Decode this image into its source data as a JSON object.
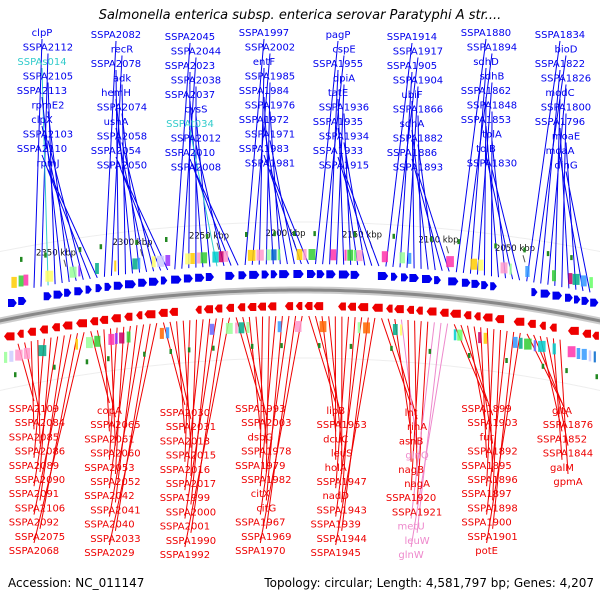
{
  "title": "Salmonella enterica subsp. enterica serovar Paratyphi A str....",
  "footer": {
    "accession": "Accession: NC_011147",
    "topology": "Topology: circular; Length: 4,581,797 bp; Genes: 4,207"
  },
  "colors": {
    "forward_gene": "#0000ee",
    "reverse_gene": "#ee0000",
    "rna_forward": "#33cccc",
    "rna_reverse": "#ee88cc",
    "backbone": "#888888",
    "ticks": "#228822"
  },
  "position_labels": [
    "2350 kbp",
    "2300 kbp",
    "2250 kbp",
    "2200 kbp",
    "2150 kbp",
    "2100 kbp",
    "2050 kbp"
  ],
  "top_labels": [
    {
      "text": "clpP",
      "type": "gene"
    },
    {
      "text": "SSPA2112",
      "type": "gene"
    },
    {
      "text": "SSPAs014",
      "type": "rna"
    },
    {
      "text": "SSPA2105",
      "type": "gene"
    },
    {
      "text": "SSPA2113",
      "type": "gene"
    },
    {
      "text": "rpmE2",
      "type": "gene"
    },
    {
      "text": "clpX",
      "type": "gene"
    },
    {
      "text": "SSPA2103",
      "type": "gene"
    },
    {
      "text": "SSPA2110",
      "type": "gene"
    },
    {
      "text": "rpmJ",
      "type": "gene"
    },
    {
      "text": "SSPA2082",
      "type": "gene"
    },
    {
      "text": "recR",
      "type": "gene"
    },
    {
      "text": "SSPA2078",
      "type": "gene"
    },
    {
      "text": "adk",
      "type": "gene"
    },
    {
      "text": "hemH",
      "type": "gene"
    },
    {
      "text": "SSPA2074",
      "type": "gene"
    },
    {
      "text": "ushA",
      "type": "gene"
    },
    {
      "text": "SSPA2058",
      "type": "gene"
    },
    {
      "text": "SSPA2054",
      "type": "gene"
    },
    {
      "text": "SSPA2050",
      "type": "gene"
    },
    {
      "text": "SSPA2045",
      "type": "gene"
    },
    {
      "text": "SSPA2044",
      "type": "gene"
    },
    {
      "text": "SSPA2023",
      "type": "gene"
    },
    {
      "text": "SSPA2038",
      "type": "gene"
    },
    {
      "text": "SSPA2037",
      "type": "gene"
    },
    {
      "text": "cysS",
      "type": "gene"
    },
    {
      "text": "SSPAt034",
      "type": "rna"
    },
    {
      "text": "SSPA2012",
      "type": "gene"
    },
    {
      "text": "SSPA2010",
      "type": "gene"
    },
    {
      "text": "SSPA2008",
      "type": "gene"
    },
    {
      "text": "SSPA1997",
      "type": "gene"
    },
    {
      "text": "SSPA2002",
      "type": "gene"
    },
    {
      "text": "entF",
      "type": "gene"
    },
    {
      "text": "SSPA1985",
      "type": "gene"
    },
    {
      "text": "SSPA1984",
      "type": "gene"
    },
    {
      "text": "SSPA1976",
      "type": "gene"
    },
    {
      "text": "SSPA1972",
      "type": "gene"
    },
    {
      "text": "SSPA1971",
      "type": "gene"
    },
    {
      "text": "SSPA1983",
      "type": "gene"
    },
    {
      "text": "SSPA1981",
      "type": "gene"
    },
    {
      "text": "pagP",
      "type": "gene"
    },
    {
      "text": "cspE",
      "type": "gene"
    },
    {
      "text": "SSPA1955",
      "type": "gene"
    },
    {
      "text": "dpiA",
      "type": "gene"
    },
    {
      "text": "tatE",
      "type": "gene"
    },
    {
      "text": "SSPA1936",
      "type": "gene"
    },
    {
      "text": "SSPA1935",
      "type": "gene"
    },
    {
      "text": "SSPA1934",
      "type": "gene"
    },
    {
      "text": "SSPA1933",
      "type": "gene"
    },
    {
      "text": "SSPA1915",
      "type": "gene"
    },
    {
      "text": "SSPA1914",
      "type": "gene"
    },
    {
      "text": "SSPA1917",
      "type": "gene"
    },
    {
      "text": "SSPA1905",
      "type": "gene"
    },
    {
      "text": "SSPA1904",
      "type": "gene"
    },
    {
      "text": "ubiF",
      "type": "gene"
    },
    {
      "text": "SSPA1866",
      "type": "gene"
    },
    {
      "text": "sdhA",
      "type": "gene"
    },
    {
      "text": "SSPA1882",
      "type": "gene"
    },
    {
      "text": "SSPA1886",
      "type": "gene"
    },
    {
      "text": "SSPA1893",
      "type": "gene"
    },
    {
      "text": "SSPA1880",
      "type": "gene"
    },
    {
      "text": "SSPA1894",
      "type": "gene"
    },
    {
      "text": "sdhD",
      "type": "gene"
    },
    {
      "text": "sdhB",
      "type": "gene"
    },
    {
      "text": "SSPA1862",
      "type": "gene"
    },
    {
      "text": "SSPA1848",
      "type": "gene"
    },
    {
      "text": "SSPA1853",
      "type": "gene"
    },
    {
      "text": "tolA",
      "type": "gene"
    },
    {
      "text": "tolB",
      "type": "gene"
    },
    {
      "text": "SSPA1830",
      "type": "gene"
    },
    {
      "text": "SSPA1834",
      "type": "gene"
    },
    {
      "text": "bioD",
      "type": "gene"
    },
    {
      "text": "SSPA1822",
      "type": "gene"
    },
    {
      "text": "SSPA1826",
      "type": "gene"
    },
    {
      "text": "modC",
      "type": "gene"
    },
    {
      "text": "SSPA1800",
      "type": "gene"
    },
    {
      "text": "SSPA1796",
      "type": "gene"
    },
    {
      "text": "moaE",
      "type": "gene"
    },
    {
      "text": "moaA",
      "type": "gene"
    },
    {
      "text": "dinG",
      "type": "gene"
    }
  ],
  "bottom_labels": [
    {
      "text": "SSPA2109",
      "type": "gene"
    },
    {
      "text": "SSPA2084",
      "type": "gene"
    },
    {
      "text": "SSPA2085",
      "type": "gene"
    },
    {
      "text": "SSPA2086",
      "type": "gene"
    },
    {
      "text": "SSPA2089",
      "type": "gene"
    },
    {
      "text": "SSPA2090",
      "type": "gene"
    },
    {
      "text": "SSPA2091",
      "type": "gene"
    },
    {
      "text": "SSPA2106",
      "type": "gene"
    },
    {
      "text": "SSPA2092",
      "type": "gene"
    },
    {
      "text": "SSPA2075",
      "type": "gene"
    },
    {
      "text": "SSPA2068",
      "type": "gene"
    },
    {
      "text": "copA",
      "type": "gene"
    },
    {
      "text": "SSPA2065",
      "type": "gene"
    },
    {
      "text": "SSPA2061",
      "type": "gene"
    },
    {
      "text": "SSPA2060",
      "type": "gene"
    },
    {
      "text": "SSPA2053",
      "type": "gene"
    },
    {
      "text": "SSPA2052",
      "type": "gene"
    },
    {
      "text": "SSPA2042",
      "type": "gene"
    },
    {
      "text": "SSPA2041",
      "type": "gene"
    },
    {
      "text": "SSPA2040",
      "type": "gene"
    },
    {
      "text": "SSPA2033",
      "type": "gene"
    },
    {
      "text": "SSPA2029",
      "type": "gene"
    },
    {
      "text": "SSPA2030",
      "type": "gene"
    },
    {
      "text": "SSPA2031",
      "type": "gene"
    },
    {
      "text": "SSPA2013",
      "type": "gene"
    },
    {
      "text": "SSPA2015",
      "type": "gene"
    },
    {
      "text": "SSPA2016",
      "type": "gene"
    },
    {
      "text": "SSPA2017",
      "type": "gene"
    },
    {
      "text": "SSPA1999",
      "type": "gene"
    },
    {
      "text": "SSPA2000",
      "type": "gene"
    },
    {
      "text": "SSPA2001",
      "type": "gene"
    },
    {
      "text": "SSPA1990",
      "type": "gene"
    },
    {
      "text": "SSPA1992",
      "type": "gene"
    },
    {
      "text": "SSPA1993",
      "type": "gene"
    },
    {
      "text": "SSPA2003",
      "type": "gene"
    },
    {
      "text": "dsbG",
      "type": "gene"
    },
    {
      "text": "SSPA1978",
      "type": "gene"
    },
    {
      "text": "SSPA1979",
      "type": "gene"
    },
    {
      "text": "SSPA1982",
      "type": "gene"
    },
    {
      "text": "citX",
      "type": "gene"
    },
    {
      "text": "citG",
      "type": "gene"
    },
    {
      "text": "SSPA1967",
      "type": "gene"
    },
    {
      "text": "SSPA1969",
      "type": "gene"
    },
    {
      "text": "SSPA1970",
      "type": "gene"
    },
    {
      "text": "lipB",
      "type": "gene"
    },
    {
      "text": "SSPA1953",
      "type": "gene"
    },
    {
      "text": "dcuC",
      "type": "gene"
    },
    {
      "text": "leuS",
      "type": "gene"
    },
    {
      "text": "holA",
      "type": "gene"
    },
    {
      "text": "SSPA1947",
      "type": "gene"
    },
    {
      "text": "nadD",
      "type": "gene"
    },
    {
      "text": "SSPA1943",
      "type": "gene"
    },
    {
      "text": "SSPA1939",
      "type": "gene"
    },
    {
      "text": "SSPA1944",
      "type": "gene"
    },
    {
      "text": "SSPA1945",
      "type": "gene"
    },
    {
      "text": "lnt",
      "type": "gene"
    },
    {
      "text": "rihA",
      "type": "gene"
    },
    {
      "text": "asnB",
      "type": "gene"
    },
    {
      "text": "glnQ",
      "type": "rna"
    },
    {
      "text": "nagB",
      "type": "gene"
    },
    {
      "text": "nagA",
      "type": "gene"
    },
    {
      "text": "SSPA1920",
      "type": "gene"
    },
    {
      "text": "SSPA1921",
      "type": "gene"
    },
    {
      "text": "metU",
      "type": "rna"
    },
    {
      "text": "leuW",
      "type": "rna"
    },
    {
      "text": "glnW",
      "type": "rna"
    },
    {
      "text": "SSPA1899",
      "type": "gene"
    },
    {
      "text": "SSPA1903",
      "type": "gene"
    },
    {
      "text": "fur",
      "type": "gene"
    },
    {
      "text": "SSPA1892",
      "type": "gene"
    },
    {
      "text": "SSPA1895",
      "type": "gene"
    },
    {
      "text": "SSPA1896",
      "type": "gene"
    },
    {
      "text": "SSPA1897",
      "type": "gene"
    },
    {
      "text": "SSPA1898",
      "type": "gene"
    },
    {
      "text": "SSPA1900",
      "type": "gene"
    },
    {
      "text": "SSPA1901",
      "type": "gene"
    },
    {
      "text": "potE",
      "type": "gene"
    },
    {
      "text": "gltA",
      "type": "gene"
    },
    {
      "text": "SSPA1876",
      "type": "gene"
    },
    {
      "text": "SSPA1852",
      "type": "gene"
    },
    {
      "text": "SSPA1844",
      "type": "gene"
    },
    {
      "text": "galM",
      "type": "gene"
    },
    {
      "text": "gpmA",
      "type": "gene"
    }
  ]
}
